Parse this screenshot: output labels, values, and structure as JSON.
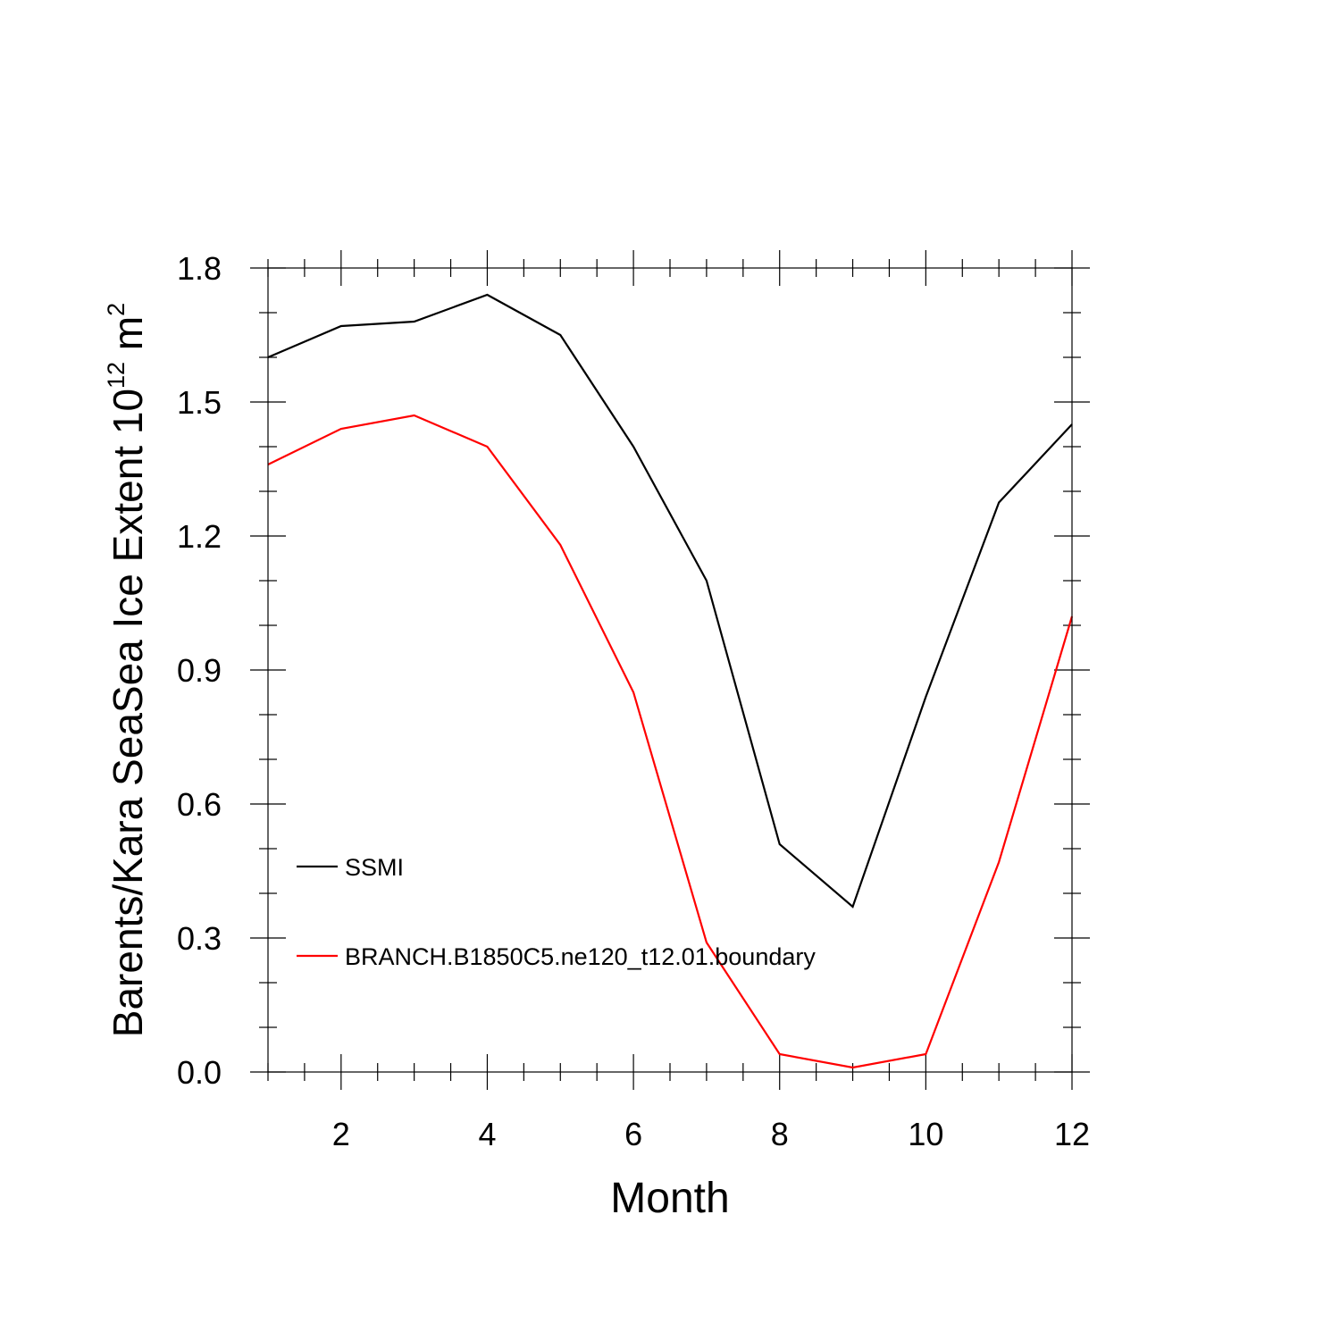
{
  "chart_data": {
    "type": "line",
    "title": "",
    "xlabel": "Month",
    "ylabel": {
      "base": "Barents/Kara SeaSea Ice Extent 10",
      "exp1": "12",
      "unit": " m",
      "exp2": "2"
    },
    "xlim": [
      1,
      12
    ],
    "ylim": [
      0,
      1.8
    ],
    "xticks": [
      2,
      4,
      6,
      8,
      10,
      12
    ],
    "xtick_labels": [
      "2",
      "4",
      "6",
      "8",
      "10",
      "12"
    ],
    "yticks": [
      0,
      0.3,
      0.6,
      0.9,
      1.2,
      1.5,
      1.8
    ],
    "ytick_labels": [
      "0.0",
      "0.3",
      "0.6",
      "0.9",
      "1.2",
      "1.5",
      "1.8"
    ],
    "x": [
      1,
      2,
      3,
      4,
      5,
      6,
      7,
      8,
      9,
      10,
      11,
      12
    ],
    "series": [
      {
        "name": "SSMI",
        "color": "#000000",
        "values": [
          1.6,
          1.67,
          1.68,
          1.74,
          1.65,
          1.4,
          1.1,
          0.51,
          0.37,
          0.84,
          1.275,
          1.45
        ]
      },
      {
        "name": "BRANCH.B1850C5.ne120_t12.01.boundary",
        "color": "#ff0000",
        "values": [
          1.36,
          1.44,
          1.47,
          1.4,
          1.18,
          0.85,
          0.29,
          0.04,
          0.01,
          0.04,
          0.47,
          1.02
        ]
      }
    ],
    "legend": "inside lower-left",
    "grid": false
  }
}
